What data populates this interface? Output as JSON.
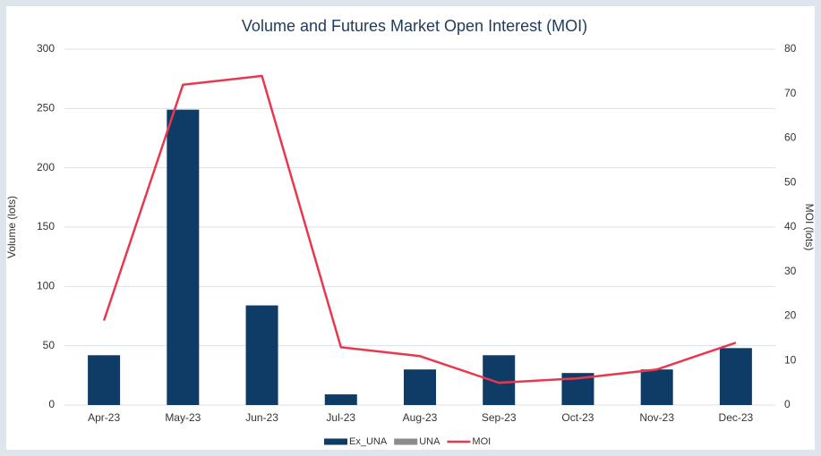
{
  "chart_data": {
    "type": "bar",
    "title": "Volume and Futures Market Open Interest (MOI)",
    "ylabel": "Volume (lots)",
    "y2label": "MOI (lots)",
    "categories": [
      "Apr-23",
      "May-23",
      "Jun-23",
      "Jul-23",
      "Aug-23",
      "Sep-23",
      "Oct-23",
      "Nov-23",
      "Dec-23"
    ],
    "series": [
      {
        "name": "Ex_UNA",
        "type": "bar",
        "color": "#0f3c66",
        "values": [
          42,
          249,
          84,
          9,
          30,
          42,
          27,
          30,
          48
        ]
      },
      {
        "name": "UNA",
        "type": "bar",
        "color": "#8c8c8c",
        "values": [
          0,
          0,
          0,
          0,
          0,
          0,
          0,
          0,
          0
        ]
      },
      {
        "name": "MOI",
        "type": "line",
        "axis": "y2",
        "color": "#e8384f",
        "values": [
          19,
          72,
          74,
          13,
          11,
          5,
          6,
          8,
          14
        ]
      }
    ],
    "stacked": true,
    "ylim": [
      0,
      300
    ],
    "yticks": [
      0,
      50,
      100,
      150,
      200,
      250,
      300
    ],
    "y2lim": [
      0,
      80
    ],
    "y2ticks": [
      0,
      10,
      20,
      30,
      40,
      50,
      60,
      70,
      80
    ],
    "grid": true,
    "legend": "bottom"
  }
}
